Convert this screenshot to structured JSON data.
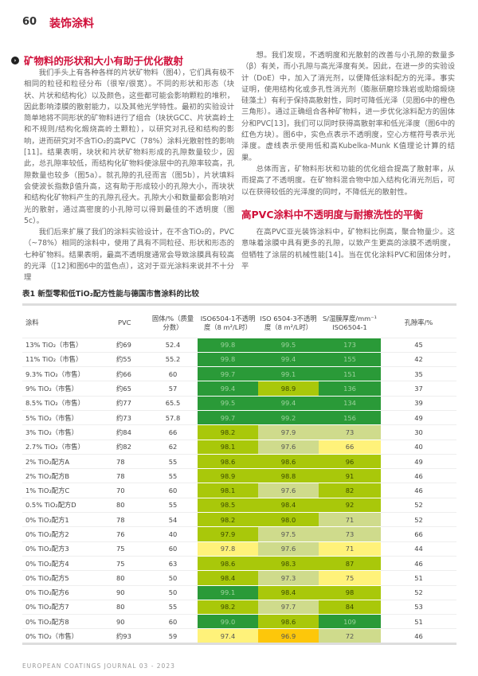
{
  "header": {
    "page_number": "60",
    "section": "装饰涂料"
  },
  "article": {
    "heading1": "矿物料的形状和大小有助于优化散射",
    "left_paragraphs": [
      "我们手头上有各种各样的片状矿物料（图4），它们具有极不相同的粒径和粒径分布（很窄/很宽）。不同的形状和形态（块状、片状和结构化）以及颜色，这些都可能会影响颗粒的堆积，因此影响漆膜的散射能力，以及其他光学特性。最初的实验设计简单地将不同形状的矿物料进行了组合（块状GCC、片状高岭土和不规则/结构化煅烧高岭土颗粒），以研究对孔径和结构的影响，进而研究对不含TiO₂的高PVC（78%）涂料光散射性的影响[11]。结果表明，块状和片状矿物料形成的孔隙数量较少，因此，总孔隙率较低，而结构化矿物料使涂层中的孔隙率较高，孔隙数量也较多（图5a）。就孔隙的孔径而言（图5b），片状填料会使波长指数β值升高，这有助于形成较小的孔隙大小，而块状和结构化矿物料产生的孔隙孔径大。孔隙大小和数量都会影响对光的散射，通过高密度的小孔隙可以得到最佳的不透明度（图5c）。",
      "我们后来扩展了我们的涂料实验设计，在不含TiO₂的，PVC（~78%）相同的涂料中，使用了具有不同粒径、形状和形态的七种矿物料。结果表明，最高不透明度通常会导致涂膜具有较高的光泽（[12]和图6中的蓝色点），这对于亚光涂料来说并不十分理"
    ],
    "right_paragraphs": [
      "想。我们发现，不透明度和光散射的改善与小孔隙的数量多（β）有关，而小孔隙与高光泽度有关。因此，在进一步的实验设计（DoE）中，加入了消光剂，以便降低涂料配方的光泽。事实证明，使用结构化或多孔性消光剂（膨胀研磨珍珠岩或助熔煅烧硅藻土）有利于保持高散射性，同时可降低光泽（见图6中的橙色三角形）。通过正确组合各种矿物料，进一步优化涂料配方的固体分和PVC[13]，我们可以同时获得高散射率和低光泽度（图6中的红色方块）。图6中，实色点表示不透明度，空心方框符号表示光泽度。虚线表示使用低和高Kubelka-Munk K值理论计算的结果。",
      "总体而言，矿物料形状和功能的优化组合提高了散射率，从而提高了不透明度。在矿物料混合物中加入结构化消光剂后，可以在获得较低的光泽度的同时，不降低光的散射性。"
    ],
    "heading2": "高PVC涂料中不透明度与耐擦洗性的平衡",
    "right_paragraphs2": [
      "在高PVC亚光装饰涂料中，矿物料比例高，聚合物量少。这意味着涂膜中具有更多的孔隙，以致产生更高的涂膜不透明度，但牺牲了涂层的机械性能[14]。当在优化涂料PVC和固体分时，平"
    ]
  },
  "table": {
    "caption": "表1 新型零和低TiO₂配方性能与德国市售涂料的比较",
    "headers": [
      "涂料",
      "PVC",
      "固体/%（质量分数）",
      "ISO6504-1不透明度（8 m²/L时）",
      "ISO 6504-3不透明度（8 m²/L时）",
      "S/湿膜厚度/mm⁻¹ ISO6504-1",
      "孔隙率/%"
    ],
    "rows": [
      {
        "name": "13% TiO₂（市售）",
        "pvc": "约69",
        "solids": "52.4",
        "op1": "99.8",
        "op3": "99.5",
        "s": "173",
        "por": "45",
        "c": [
          "D",
          "D",
          "D"
        ]
      },
      {
        "name": "11% TiO₂（市售）",
        "pvc": "约55",
        "solids": "55.2",
        "op1": "99.8",
        "op3": "99.4",
        "s": "155",
        "por": "42",
        "c": [
          "D",
          "D",
          "D"
        ]
      },
      {
        "name": "9.3% TiO₂（市售）",
        "pvc": "约66",
        "solids": "60",
        "op1": "99.7",
        "op3": "99.1",
        "s": "151",
        "por": "35",
        "c": [
          "D",
          "D",
          "D"
        ]
      },
      {
        "name": "9% TiO₂（市售）",
        "pvc": "约65",
        "solids": "57",
        "op1": "99.4",
        "op3": "98.9",
        "s": "136",
        "por": "37",
        "c": [
          "D",
          "L",
          "D"
        ]
      },
      {
        "name": "8.5% TiO₂（市售）",
        "pvc": "约77",
        "solids": "65.5",
        "op1": "99.5",
        "op3": "99.4",
        "s": "134",
        "por": "39",
        "c": [
          "D",
          "D",
          "D"
        ]
      },
      {
        "name": "5% TiO₂（市售）",
        "pvc": "约73",
        "solids": "57.8",
        "op1": "99.7",
        "op3": "99.2",
        "s": "156",
        "por": "49",
        "c": [
          "D",
          "D",
          "D"
        ]
      },
      {
        "name": "3% TiO₂（市售）",
        "pvc": "约84",
        "solids": "66",
        "op1": "98.2",
        "op3": "97.9",
        "s": "73",
        "por": "30",
        "c": [
          "L",
          "P",
          "P"
        ]
      },
      {
        "name": "2.7% TiO₂（市售）",
        "pvc": "约82",
        "solids": "62",
        "op1": "98.1",
        "op3": "97.6",
        "s": "66",
        "por": "40",
        "c": [
          "L",
          "P",
          "Y"
        ]
      },
      {
        "name": "2% TiO₂配方A",
        "pvc": "78",
        "solids": "55",
        "op1": "98.6",
        "op3": "98.6",
        "s": "96",
        "por": "49",
        "c": [
          "L",
          "L",
          "L"
        ]
      },
      {
        "name": "2% TiO₂配方B",
        "pvc": "78",
        "solids": "55",
        "op1": "98.9",
        "op3": "98.8",
        "s": "91",
        "por": "46",
        "c": [
          "L",
          "L",
          "L"
        ]
      },
      {
        "name": "1% TiO₂配方C",
        "pvc": "70",
        "solids": "60",
        "op1": "98.1",
        "op3": "97.6",
        "s": "82",
        "por": "46",
        "c": [
          "L",
          "P",
          "L"
        ]
      },
      {
        "name": "0.5% TiO₂配方D",
        "pvc": "80",
        "solids": "55",
        "op1": "98.5",
        "op3": "98.4",
        "s": "92",
        "por": "52",
        "c": [
          "L",
          "L",
          "L"
        ]
      },
      {
        "name": "0% TiO₂配方1",
        "pvc": "78",
        "solids": "54",
        "op1": "98.2",
        "op3": "98.0",
        "s": "71",
        "por": "52",
        "c": [
          "L",
          "L",
          "P"
        ]
      },
      {
        "name": "0% TiO₂配方2",
        "pvc": "76",
        "solids": "40",
        "op1": "97.9",
        "op3": "97.5",
        "s": "73",
        "por": "66",
        "c": [
          "L",
          "P",
          "P"
        ]
      },
      {
        "name": "0% TiO₂配方3",
        "pvc": "75",
        "solids": "60",
        "op1": "97.8",
        "op3": "97.6",
        "s": "71",
        "por": "44",
        "c": [
          "Y",
          "P",
          "Y"
        ]
      },
      {
        "name": "0% TiO₂配方4",
        "pvc": "75",
        "solids": "63",
        "op1": "98.6",
        "op3": "98.3",
        "s": "87",
        "por": "46",
        "c": [
          "L",
          "L",
          "L"
        ]
      },
      {
        "name": "0% TiO₂配方5",
        "pvc": "80",
        "solids": "50",
        "op1": "98.4",
        "op3": "97.3",
        "s": "75",
        "por": "51",
        "c": [
          "L",
          "P",
          "Y"
        ]
      },
      {
        "name": "0% TiO₂配方6",
        "pvc": "90",
        "solids": "50",
        "op1": "99.1",
        "op3": "98.4",
        "s": "98",
        "por": "52",
        "c": [
          "D",
          "L",
          "L"
        ]
      },
      {
        "name": "0% TiO₂配方7",
        "pvc": "80",
        "solids": "55",
        "op1": "98.2",
        "op3": "97.7",
        "s": "84",
        "por": "53",
        "c": [
          "L",
          "P",
          "L"
        ]
      },
      {
        "name": "0% TiO₂配方8",
        "pvc": "90",
        "solids": "60",
        "op1": "99.0",
        "op3": "98.6",
        "s": "109",
        "por": "51",
        "c": [
          "D",
          "L",
          "D"
        ]
      },
      {
        "name": "0% TiO₂（市售）",
        "pvc": "约93",
        "solids": "59",
        "op1": "97.4",
        "op3": "96.9",
        "s": "72",
        "por": "46",
        "c": [
          "Y",
          "O",
          "P"
        ]
      }
    ]
  },
  "colors": {
    "accent": "#d0103a",
    "dark_green": "#2a9a38",
    "lime": "#a9c80a",
    "pale_green": "#cfdb8c",
    "yellow": "#fff27a",
    "orange": "#fdc70a"
  },
  "footer": "EUROPEAN COATINGS JOURNAL 03 - 2023"
}
